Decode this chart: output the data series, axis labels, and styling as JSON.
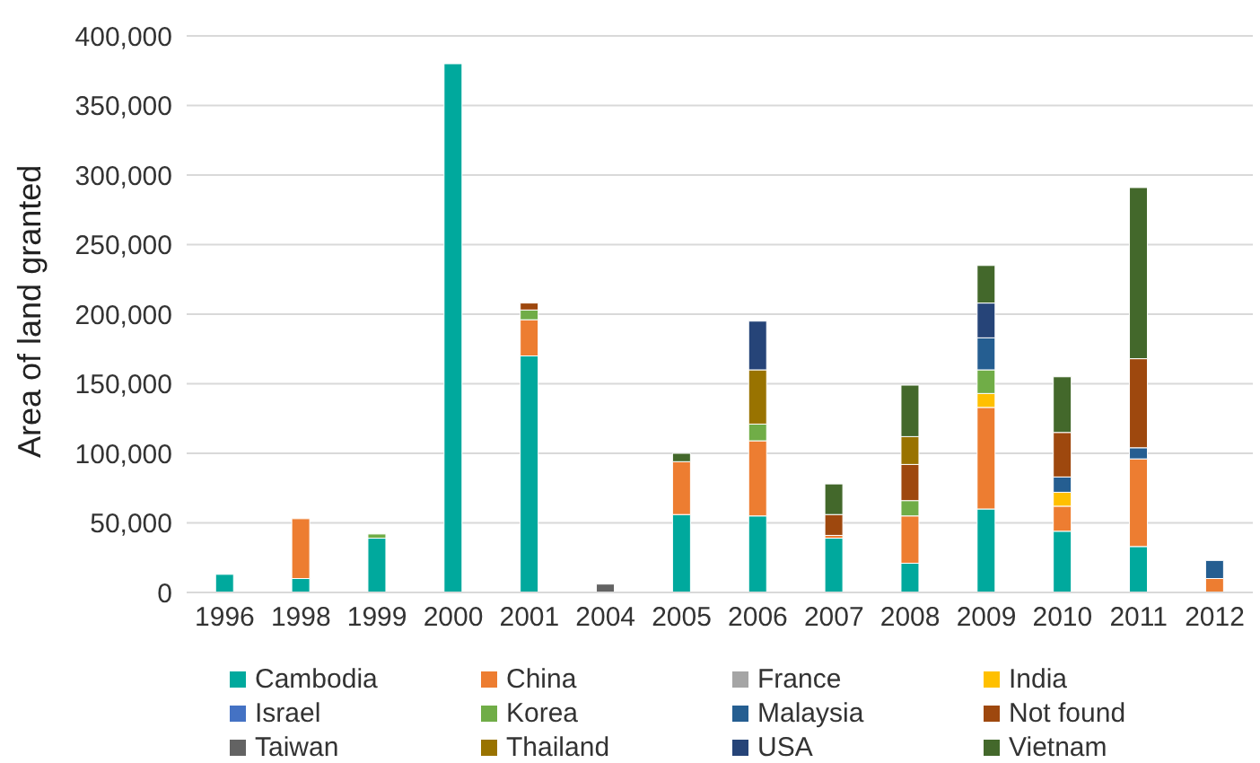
{
  "chart_data": {
    "type": "bar",
    "stacked": true,
    "ylabel": "Area of land granted",
    "categories": [
      "1996",
      "1998",
      "1999",
      "2000",
      "2001",
      "2004",
      "2005",
      "2006",
      "2007",
      "2008",
      "2009",
      "2010",
      "2011",
      "2012"
    ],
    "series": [
      {
        "name": "Cambodia",
        "color": "#00a99d",
        "values": [
          13000,
          10000,
          39000,
          380000,
          170000,
          null,
          56000,
          55000,
          39000,
          21000,
          60000,
          44000,
          33000,
          null
        ]
      },
      {
        "name": "China",
        "color": "#ed7d31",
        "values": [
          null,
          43000,
          null,
          null,
          26000,
          null,
          38000,
          54000,
          2000,
          34000,
          73000,
          18000,
          63000,
          10000
        ]
      },
      {
        "name": "France",
        "color": "#a5a5a5",
        "values": [
          null,
          null,
          null,
          null,
          null,
          null,
          null,
          null,
          null,
          null,
          null,
          null,
          null,
          null
        ]
      },
      {
        "name": "India",
        "color": "#ffc000",
        "values": [
          null,
          null,
          null,
          null,
          null,
          null,
          null,
          null,
          null,
          null,
          10000,
          10000,
          null,
          null
        ]
      },
      {
        "name": "Israel",
        "color": "#4472c4",
        "values": [
          null,
          null,
          null,
          null,
          null,
          null,
          null,
          null,
          null,
          null,
          null,
          null,
          null,
          null
        ]
      },
      {
        "name": "Korea",
        "color": "#70ad47",
        "values": [
          null,
          null,
          3000,
          null,
          7000,
          null,
          null,
          12000,
          null,
          11000,
          17000,
          null,
          null,
          null
        ]
      },
      {
        "name": "Malaysia",
        "color": "#255e91",
        "values": [
          null,
          null,
          null,
          null,
          null,
          null,
          null,
          null,
          null,
          null,
          23000,
          11000,
          8000,
          13000
        ]
      },
      {
        "name": "Not found",
        "color": "#9e480e",
        "values": [
          null,
          null,
          null,
          null,
          5000,
          null,
          null,
          null,
          15000,
          26000,
          null,
          32000,
          64000,
          null
        ]
      },
      {
        "name": "Taiwan",
        "color": "#636363",
        "values": [
          null,
          null,
          null,
          null,
          null,
          6000,
          null,
          null,
          null,
          null,
          null,
          null,
          null,
          null
        ]
      },
      {
        "name": "Thailand",
        "color": "#997300",
        "values": [
          null,
          null,
          null,
          null,
          null,
          null,
          null,
          39000,
          null,
          20000,
          null,
          null,
          null,
          null
        ]
      },
      {
        "name": "USA",
        "color": "#264478",
        "values": [
          null,
          null,
          null,
          null,
          null,
          null,
          null,
          35000,
          null,
          null,
          25000,
          null,
          null,
          null
        ]
      },
      {
        "name": "Vietnam",
        "color": "#43682b",
        "values": [
          null,
          null,
          null,
          null,
          null,
          null,
          6000,
          null,
          22000,
          37000,
          27000,
          40000,
          123000,
          null
        ]
      }
    ],
    "ylim": [
      0,
      400000
    ],
    "yticks": [
      0,
      {
        "value": 50000,
        "label": "50,000"
      },
      {
        "value": 100000,
        "label": "100,000"
      },
      {
        "value": 150000,
        "label": "150,000"
      },
      {
        "value": 200000,
        "label": "200,000"
      },
      {
        "value": 250000,
        "label": "250,000"
      },
      {
        "value": 300000,
        "label": "300,000"
      },
      {
        "value": 350000,
        "label": "350,000"
      },
      {
        "value": 400000,
        "label": "400,000"
      }
    ],
    "grid": "y",
    "legend": "bottom"
  }
}
